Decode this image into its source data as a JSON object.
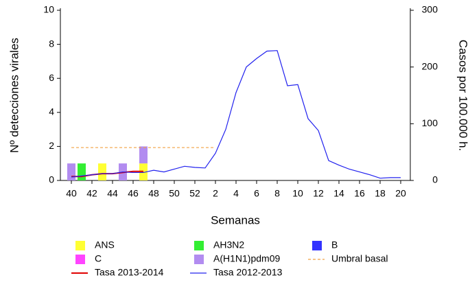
{
  "chart_data": {
    "type": "bar-line",
    "xlabel": "Semanas",
    "ylabel": "Nº detecciones virales",
    "y2label": "Casos por 100.000 h.",
    "categories": [
      "40",
      null,
      "42",
      null,
      "44",
      null,
      "46",
      null,
      "48",
      null,
      "50",
      null,
      "52",
      null,
      "2",
      null,
      "4",
      null,
      "6",
      null,
      "8",
      null,
      "10",
      null,
      "12",
      null,
      "14",
      null,
      "16",
      null,
      "18",
      null,
      "20"
    ],
    "ylim": [
      0,
      10
    ],
    "yticks": [
      0,
      2,
      4,
      6,
      8,
      10
    ],
    "y2lim": [
      0,
      300
    ],
    "y2ticks": [
      0,
      100,
      200,
      300
    ],
    "series": [
      {
        "name": "ANS",
        "color": "#ffff33",
        "style": "bar",
        "values": [
          null,
          null,
          null,
          1,
          null,
          null,
          null,
          1,
          null,
          null,
          null,
          null,
          null,
          null,
          null,
          null,
          null,
          null,
          null,
          null,
          null,
          null,
          null,
          null,
          null,
          null,
          null,
          null,
          null,
          null,
          null,
          null,
          null
        ]
      },
      {
        "name": "AH3N2",
        "color": "#33ee33",
        "style": "bar",
        "values": [
          null,
          1,
          null,
          null,
          null,
          null,
          null,
          null,
          null,
          null,
          null,
          null,
          null,
          null,
          null,
          null,
          null,
          null,
          null,
          null,
          null,
          null,
          null,
          null,
          null,
          null,
          null,
          null,
          null,
          null,
          null,
          null,
          null
        ]
      },
      {
        "name": "B",
        "color": "#3333ff",
        "style": "bar",
        "values": [
          null,
          null,
          null,
          null,
          null,
          null,
          null,
          null,
          null,
          null,
          null,
          null,
          null,
          null,
          null,
          null,
          null,
          null,
          null,
          null,
          null,
          null,
          null,
          null,
          null,
          null,
          null,
          null,
          null,
          null,
          null,
          null,
          null
        ]
      },
      {
        "name": "C",
        "color": "#ff44ff",
        "style": "bar",
        "values": [
          null,
          null,
          null,
          null,
          null,
          null,
          null,
          null,
          null,
          null,
          null,
          null,
          null,
          null,
          null,
          null,
          null,
          null,
          null,
          null,
          null,
          null,
          null,
          null,
          null,
          null,
          null,
          null,
          null,
          null,
          null,
          null,
          null
        ]
      },
      {
        "name": "A(H1N1)pdm09",
        "color": "#b28cf0",
        "style": "bar",
        "values": [
          1,
          null,
          null,
          null,
          null,
          1,
          null,
          1,
          null,
          null,
          null,
          null,
          null,
          null,
          null,
          null,
          null,
          null,
          null,
          null,
          null,
          null,
          null,
          null,
          null,
          null,
          null,
          null,
          null,
          null,
          null,
          null,
          null
        ]
      },
      {
        "name": "Umbral basal",
        "color": "#f0a040",
        "style": "dashed",
        "axis": "y2",
        "values": [
          58,
          58,
          58,
          58,
          58,
          58,
          58,
          58,
          58,
          58,
          58,
          58,
          58,
          58,
          58,
          null,
          null,
          null,
          null,
          null,
          null,
          null,
          null,
          null,
          null,
          null,
          null,
          null,
          null,
          null,
          null,
          null,
          null
        ]
      },
      {
        "name": "Tasa 2013-2014",
        "color": "#e00000",
        "style": "line",
        "axis": "y2",
        "values": [
          7,
          7,
          10,
          12,
          12,
          14,
          16,
          16,
          null,
          null,
          null,
          null,
          null,
          null,
          null,
          null,
          null,
          null,
          null,
          null,
          null,
          null,
          null,
          null,
          null,
          null,
          null,
          null,
          null,
          null,
          null,
          null,
          null
        ]
      },
      {
        "name": "Tasa 2012-2013",
        "color": "#2020ee",
        "style": "line",
        "axis": "y2",
        "values": [
          6,
          8,
          10,
          12,
          12,
          15,
          14,
          14,
          18,
          15,
          20,
          25,
          23,
          22,
          48,
          90,
          155,
          200,
          215,
          228,
          229,
          167,
          169,
          109,
          88,
          35,
          27,
          20,
          15,
          10,
          4,
          5,
          5
        ]
      }
    ]
  }
}
